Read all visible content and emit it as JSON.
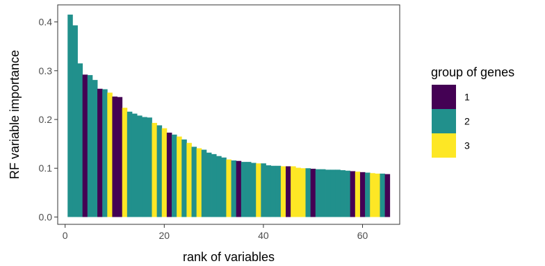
{
  "chart_data": {
    "type": "bar",
    "xlabel": "rank of variables",
    "ylabel": "RF variable importance",
    "xlim": [
      -1.5,
      67.5
    ],
    "ylim": [
      -0.015,
      0.435
    ],
    "x_ticks": [
      0,
      20,
      40,
      60
    ],
    "x_tick_labels": [
      "0",
      "20",
      "40",
      "60"
    ],
    "y_ticks": [
      0.0,
      0.1,
      0.2,
      0.3,
      0.4
    ],
    "y_tick_labels": [
      "0.0",
      "0.1",
      "0.2",
      "0.3",
      "0.4"
    ],
    "grid": false,
    "legend": {
      "title": "group of genes",
      "position": "right",
      "entries": [
        {
          "label": "1",
          "color": "#440154"
        },
        {
          "label": "2",
          "color": "#21908C"
        },
        {
          "label": "3",
          "color": "#FDE725"
        }
      ]
    },
    "x": [
      1,
      2,
      3,
      4,
      5,
      6,
      7,
      8,
      9,
      10,
      11,
      12,
      13,
      14,
      15,
      16,
      17,
      18,
      19,
      20,
      21,
      22,
      23,
      24,
      25,
      26,
      27,
      28,
      29,
      30,
      31,
      32,
      33,
      34,
      35,
      36,
      37,
      38,
      39,
      40,
      41,
      42,
      43,
      44,
      45,
      46,
      47,
      48,
      49,
      50,
      51,
      52,
      53,
      54,
      55,
      56,
      57,
      58,
      59,
      60,
      61,
      62,
      63,
      64,
      65
    ],
    "values": [
      0.415,
      0.393,
      0.315,
      0.292,
      0.291,
      0.281,
      0.263,
      0.262,
      0.255,
      0.247,
      0.246,
      0.224,
      0.216,
      0.212,
      0.208,
      0.205,
      0.204,
      0.193,
      0.188,
      0.182,
      0.173,
      0.169,
      0.165,
      0.159,
      0.152,
      0.144,
      0.141,
      0.138,
      0.132,
      0.129,
      0.125,
      0.122,
      0.118,
      0.116,
      0.115,
      0.113,
      0.113,
      0.111,
      0.11,
      0.11,
      0.106,
      0.105,
      0.105,
      0.104,
      0.104,
      0.104,
      0.101,
      0.1,
      0.1,
      0.099,
      0.098,
      0.098,
      0.097,
      0.097,
      0.097,
      0.096,
      0.095,
      0.094,
      0.093,
      0.092,
      0.091,
      0.09,
      0.089,
      0.089,
      0.088
    ],
    "groups": [
      "2",
      "2",
      "2",
      "1",
      "2",
      "2",
      "1",
      "2",
      "3",
      "1",
      "1",
      "3",
      "2",
      "2",
      "2",
      "2",
      "2",
      "3",
      "2",
      "3",
      "1",
      "2",
      "3",
      "2",
      "3",
      "2",
      "3",
      "2",
      "2",
      "2",
      "2",
      "2",
      "3",
      "2",
      "1",
      "2",
      "2",
      "2",
      "3",
      "2",
      "2",
      "2",
      "2",
      "3",
      "1",
      "3",
      "3",
      "3",
      "2",
      "1",
      "2",
      "2",
      "2",
      "2",
      "2",
      "2",
      "2",
      "1",
      "3",
      "1",
      "2",
      "3",
      "3",
      "2",
      "1"
    ]
  }
}
